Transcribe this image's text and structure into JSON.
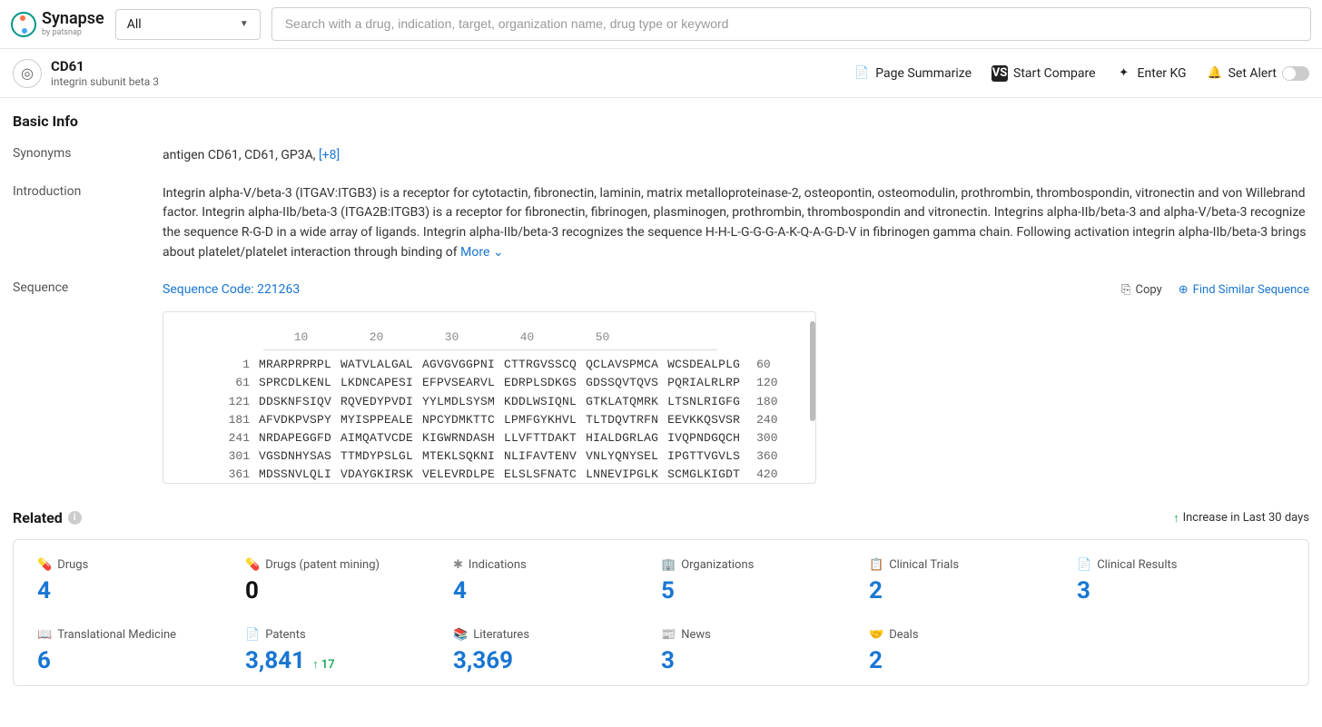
{
  "brand": {
    "name": "Synapse",
    "byline": "by patsnap"
  },
  "filter": {
    "selected": "All"
  },
  "search": {
    "placeholder": "Search with a drug, indication, target, organization name, drug type or keyword"
  },
  "target": {
    "title": "CD61",
    "subtitle": "integrin subunit beta 3"
  },
  "actions": {
    "summarize": "Page Summarize",
    "compare": "Start Compare",
    "kg": "Enter KG",
    "alert": "Set Alert"
  },
  "basicInfo": {
    "heading": "Basic Info",
    "synonymsLabel": "Synonyms",
    "synonyms": "antigen CD61,  CD61,  GP3A,  ",
    "synonymsMore": "[+8]",
    "introLabel": "Introduction",
    "intro": "Integrin alpha-V/beta-3 (ITGAV:ITGB3) is a receptor for cytotactin, fibronectin, laminin, matrix metalloproteinase-2, osteopontin, osteomodulin, prothrombin, thrombospondin, vitronectin and von Willebrand factor. Integrin alpha-IIb/beta-3 (ITGA2B:ITGB3) is a receptor for fibronectin, fibrinogen, plasminogen, prothrombin, thrombospondin and vitronectin. Integrins alpha-IIb/beta-3 and alpha-V/beta-3 recognize the sequence R-G-D in a wide array of ligands. Integrin alpha-IIb/beta-3 recognizes the sequence H-H-L-G-G-G-A-K-Q-A-G-D-V in fibrinogen gamma chain. Following activation integrin alpha-IIb/beta-3 brings about platelet/platelet interaction through binding of",
    "moreLabel": "More",
    "sequenceLabel": "Sequence",
    "sequenceCode": "Sequence Code: 221263",
    "copyLabel": "Copy",
    "findSimilarLabel": "Find Similar Sequence"
  },
  "sequence": {
    "ruler": [
      "10",
      "20",
      "30",
      "40",
      "50"
    ],
    "lines": [
      {
        "l": "1",
        "r": "60",
        "chunks": [
          "MRARPRPRPL",
          "WATVLALGAL",
          "AGVGVGGPNI",
          "CTTRGVSSCQ",
          "QCLAVSPMCA",
          "WCSDEALPLG"
        ]
      },
      {
        "l": "61",
        "r": "120",
        "chunks": [
          "SPRCDLKENL",
          "LKDNCAPESI",
          "EFPVSEARVL",
          "EDRPLSDKGS",
          "GDSSQVTQVS",
          "PQRIALRLRP"
        ]
      },
      {
        "l": "121",
        "r": "180",
        "chunks": [
          "DDSKNFSIQV",
          "RQVEDYPVDI",
          "YYLMDLSYSM",
          "KDDLWSIQNL",
          "GTKLATQMRK",
          "LTSNLRIGFG"
        ]
      },
      {
        "l": "181",
        "r": "240",
        "chunks": [
          "AFVDKPVSPY",
          "MYISPPEALE",
          "NPCYDMKTTC",
          "LPMFGYKHVL",
          "TLTDQVTRFN",
          "EEVKKQSVSR"
        ]
      },
      {
        "l": "241",
        "r": "300",
        "chunks": [
          "NRDAPEGGFD",
          "AIMQATVCDE",
          "KIGWRNDASH",
          "LLVFTTDAKT",
          "HIALDGRLAG",
          "IVQPNDGQCH"
        ]
      },
      {
        "l": "301",
        "r": "360",
        "chunks": [
          "VGSDNHYSAS",
          "TTMDYPSLGL",
          "MTEKLSQKNI",
          "NLIFAVTENV",
          "VNLYQNYSEL",
          "IPGTTVGVLS"
        ]
      },
      {
        "l": "361",
        "r": "420",
        "chunks": [
          "MDSSNVLQLI",
          "VDAYGKIRSK",
          "VELEVRDLPE",
          "ELSLSFNATC",
          "LNNEVIPGLK",
          "SCMGLKIGDT"
        ]
      }
    ]
  },
  "related": {
    "heading": "Related",
    "legend": "Increase in Last 30 days",
    "stats": [
      {
        "name": "drugs",
        "label": "Drugs",
        "value": "4",
        "color": "blue"
      },
      {
        "name": "drugs-patent-mining",
        "label": "Drugs (patent mining)",
        "value": "0",
        "color": "black"
      },
      {
        "name": "indications",
        "label": "Indications",
        "value": "4",
        "color": "blue"
      },
      {
        "name": "organizations",
        "label": "Organizations",
        "value": "5",
        "color": "blue"
      },
      {
        "name": "clinical-trials",
        "label": "Clinical Trials",
        "value": "2",
        "color": "blue"
      },
      {
        "name": "clinical-results",
        "label": "Clinical Results",
        "value": "3",
        "color": "blue"
      },
      {
        "name": "translational-medicine",
        "label": "Translational Medicine",
        "value": "6",
        "color": "blue"
      },
      {
        "name": "patents",
        "label": "Patents",
        "value": "3,841",
        "color": "blue",
        "delta": "17"
      },
      {
        "name": "literatures",
        "label": "Literatures",
        "value": "3,369",
        "color": "blue"
      },
      {
        "name": "news",
        "label": "News",
        "value": "3",
        "color": "blue"
      },
      {
        "name": "deals",
        "label": "Deals",
        "value": "2",
        "color": "blue"
      }
    ],
    "icons": [
      "💊",
      "💊",
      "✱",
      "🏢",
      "📋",
      "📄",
      "📖",
      "📄",
      "📚",
      "📰",
      "🤝"
    ]
  }
}
